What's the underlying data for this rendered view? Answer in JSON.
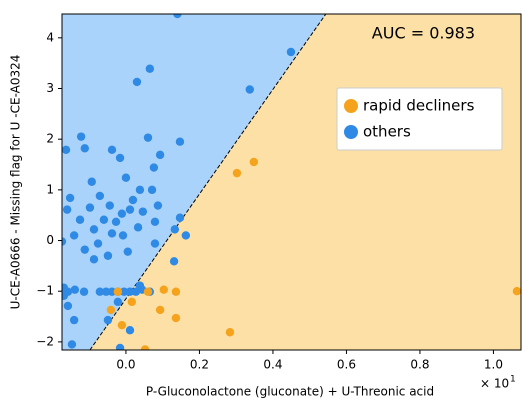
{
  "chart_data": {
    "type": "scatter",
    "x_label": "P-Gluconolactone  (gluconate) + U-Threonic acid",
    "y_label": "U-CE-A0666 - Missing flag for U -CE-A0324",
    "x_offset_text": "× 10",
    "x_offset_exponent": "1",
    "annotation": "AUC = 0.983",
    "xlim": [
      -0.174,
      1.075
    ],
    "ylim": [
      -2.16,
      4.47
    ],
    "xticks": [
      {
        "value": 0,
        "label": "0.0"
      },
      0.2,
      0.4,
      0.6,
      0.8,
      {
        "value": 1,
        "label": "1.0"
      }
    ],
    "yticks": [
      {
        "value": -2,
        "label": "−2"
      },
      {
        "value": -1,
        "label": "−1"
      },
      0,
      1,
      2,
      3,
      4
    ],
    "boundary": {
      "x": [
        -0.098,
        0.544
      ],
      "y": [
        -2.16,
        4.47
      ]
    },
    "region_colors": [
      "#aad3fb",
      "#fde0a6"
    ],
    "legend": "upper right",
    "series": [
      {
        "name": "others",
        "color": "#2f8ae5",
        "x": [
          0.14,
          0.449,
          0.065,
          0.03,
          0.337,
          -0.122,
          0.06,
          0.147,
          -0.112,
          -0.038,
          -0.163,
          0.093,
          -0.016,
          0.076,
          -0.093,
          0.0,
          0.038,
          0.071,
          -0.071,
          -0.152,
          0.019,
          -0.044,
          0.087,
          -0.098,
          -0.16,
          0.011,
          0.046,
          -0.011,
          0.147,
          -0.06,
          -0.027,
          -0.125,
          0.079,
          0.033,
          -0.087,
          0.133,
          -0.038,
          -0.008,
          -0.141,
          0.163,
          -0.174,
          -0.076,
          0.079,
          -0.112,
          0.005,
          -0.049,
          0.131,
          -0.087,
          0.038,
          -0.169,
          -0.158,
          -0.139,
          -0.114,
          -0.071,
          -0.054,
          -0.038,
          -0.022,
          -0.005,
          0.011,
          0.027,
          0.044,
          0.065,
          -0.169,
          -0.158,
          -0.022,
          -0.141,
          -0.049,
          0.011,
          -0.147,
          -0.016
        ],
        "y": [
          4.47,
          3.72,
          3.39,
          3.13,
          2.98,
          2.05,
          2.03,
          1.95,
          1.82,
          1.79,
          1.79,
          1.69,
          1.63,
          1.44,
          1.16,
          1.24,
          1.0,
          1.0,
          0.88,
          0.84,
          0.8,
          0.69,
          0.69,
          0.65,
          0.61,
          0.61,
          0.57,
          0.53,
          0.45,
          0.41,
          0.37,
          0.41,
          0.37,
          0.26,
          0.22,
          0.22,
          0.14,
          0.1,
          0.1,
          0.1,
          -0.02,
          -0.06,
          -0.06,
          -0.18,
          -0.22,
          -0.3,
          -0.41,
          -0.37,
          -0.89,
          -0.93,
          -1.01,
          -0.97,
          -1.01,
          -1.01,
          -1.01,
          -1.01,
          -1.01,
          -1.01,
          -1.01,
          -1.01,
          -0.97,
          -1.01,
          -1.09,
          -1.29,
          -1.21,
          -1.57,
          -1.57,
          -1.77,
          -2.05,
          -2.12
        ]
      },
      {
        "name": "rapid decliners",
        "color": "#f5a31c",
        "x": [
          1.064,
          0.348,
          0.302,
          0.136,
          0.06,
          -0.022,
          0.093,
          0.136,
          -0.041,
          -0.011,
          0.283,
          0.016,
          0.052,
          0.103
        ],
        "y": [
          -1.0,
          1.55,
          1.33,
          -1.01,
          -1.01,
          -1.01,
          -1.37,
          -1.53,
          -1.37,
          -1.67,
          -1.81,
          -1.21,
          -2.15,
          -0.97
        ]
      }
    ]
  }
}
